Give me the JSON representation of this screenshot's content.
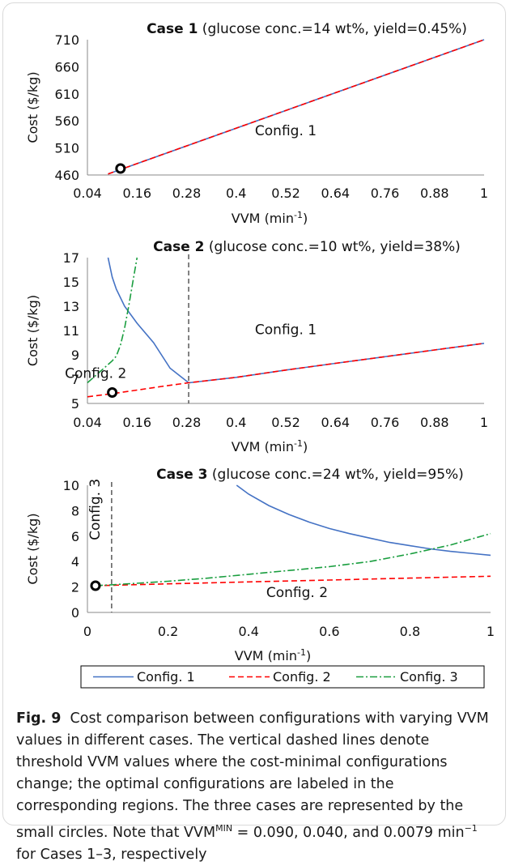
{
  "chart_data": [
    {
      "type": "line",
      "title_bold": "Case 1",
      "title_rest": " (glucose conc.=14 wt%, yield=0.45%)",
      "xlabel": "VVM (min",
      "xlabel_sup": "-1",
      "xlabel_end": ")",
      "ylabel": "Cost ($/kg)",
      "xlim": [
        0.04,
        1
      ],
      "ylim": [
        460,
        710
      ],
      "xticks": [
        "0.04",
        "0.16",
        "0.28",
        "0.4",
        "0.52",
        "0.64",
        "0.76",
        "0.88",
        "1"
      ],
      "yticks": [
        "460",
        "510",
        "560",
        "610",
        "660",
        "710"
      ],
      "series": [
        {
          "name": "Config. 1",
          "x": [
            0.09,
            1.0
          ],
          "y": [
            462,
            710
          ]
        },
        {
          "name": "Config. 2",
          "x": [
            0.09,
            1.0
          ],
          "y": [
            462,
            710
          ]
        }
      ],
      "threshold": null,
      "case_point": {
        "x": 0.12,
        "y": 472
      },
      "annotations": [
        {
          "text": "Config. 1",
          "x": 0.52,
          "y": 533,
          "vertical": false
        }
      ]
    },
    {
      "type": "line",
      "title_bold": "Case 2",
      "title_rest": " (glucose conc.=10 wt%, yield=38%)",
      "xlabel": "VVM (min",
      "xlabel_sup": "-1",
      "xlabel_end": ")",
      "ylabel": "Cost ($/kg)",
      "xlim": [
        0.04,
        1
      ],
      "ylim": [
        5,
        17
      ],
      "xticks": [
        "0.04",
        "0.16",
        "0.28",
        "0.4",
        "0.52",
        "0.64",
        "0.76",
        "0.88",
        "1"
      ],
      "yticks": [
        "5",
        "7",
        "9",
        "11",
        "13",
        "15",
        "17"
      ],
      "series": [
        {
          "name": "Config. 1",
          "x": [
            0.09,
            0.1,
            0.11,
            0.13,
            0.16,
            0.2,
            0.24,
            0.285,
            0.4,
            0.52,
            0.64,
            0.76,
            0.88,
            1.0
          ],
          "y": [
            17.0,
            15.4,
            14.4,
            13.0,
            11.6,
            10.0,
            7.9,
            6.7,
            7.15,
            7.75,
            8.3,
            8.85,
            9.4,
            9.95
          ]
        },
        {
          "name": "Config. 2",
          "x": [
            0.04,
            0.1,
            0.16,
            0.22,
            0.285,
            0.4,
            0.52,
            0.64,
            0.76,
            0.88,
            1.0
          ],
          "y": [
            5.55,
            5.8,
            6.1,
            6.4,
            6.7,
            7.15,
            7.75,
            8.3,
            8.85,
            9.4,
            9.95
          ]
        },
        {
          "name": "Config. 3",
          "x": [
            0.04,
            0.06,
            0.08,
            0.1,
            0.11,
            0.12,
            0.13,
            0.14,
            0.15,
            0.16
          ],
          "y": [
            6.7,
            7.3,
            7.9,
            8.5,
            8.9,
            9.8,
            11.2,
            13.0,
            15.0,
            17.0
          ]
        }
      ],
      "threshold": 0.285,
      "case_point": {
        "x": 0.1,
        "y": 5.9
      },
      "annotations": [
        {
          "text": "Config. 1",
          "x": 0.52,
          "y": 10.7,
          "vertical": false
        },
        {
          "text": "Config. 2",
          "x": 0.06,
          "y": 7.1,
          "vertical": false
        }
      ]
    },
    {
      "type": "line",
      "title_bold": "Case 3",
      "title_rest": " (glucose conc.=24 wt%, yield=95%)",
      "xlabel": "VVM (min",
      "xlabel_sup": "-1",
      "xlabel_end": ")",
      "ylabel": "Cost ($/kg)",
      "xlim": [
        0,
        1
      ],
      "ylim": [
        0,
        10
      ],
      "xticks": [
        "0",
        "0.2",
        "0.4",
        "0.6",
        "0.8",
        "1"
      ],
      "yticks": [
        "0",
        "2",
        "4",
        "6",
        "8",
        "10"
      ],
      "series": [
        {
          "name": "Config. 1",
          "x": [
            0.37,
            0.4,
            0.45,
            0.5,
            0.55,
            0.6,
            0.65,
            0.7,
            0.75,
            0.8,
            0.85,
            0.9,
            0.95,
            1.0
          ],
          "y": [
            10.0,
            9.3,
            8.4,
            7.7,
            7.1,
            6.6,
            6.2,
            5.85,
            5.5,
            5.25,
            5.0,
            4.8,
            4.65,
            4.5
          ]
        },
        {
          "name": "Config. 2",
          "x": [
            0.02,
            0.2,
            0.4,
            0.6,
            0.8,
            1.0
          ],
          "y": [
            2.1,
            2.25,
            2.4,
            2.55,
            2.7,
            2.85
          ]
        },
        {
          "name": "Config. 3",
          "x": [
            0.02,
            0.1,
            0.2,
            0.3,
            0.4,
            0.5,
            0.6,
            0.7,
            0.8,
            0.9,
            1.0
          ],
          "y": [
            2.1,
            2.25,
            2.45,
            2.7,
            3.0,
            3.3,
            3.6,
            4.0,
            4.6,
            5.3,
            6.2
          ]
        }
      ],
      "threshold": 0.06,
      "case_point": {
        "x": 0.02,
        "y": 2.1
      },
      "annotations": [
        {
          "text": "Config. 2",
          "x": 0.52,
          "y": 1.2,
          "vertical": false
        },
        {
          "text": "Config. 3",
          "x": 0.03,
          "y": 8.1,
          "vertical": true
        }
      ]
    }
  ],
  "legend": [
    {
      "name": "Config. 1",
      "color": "#4472c4",
      "dash": "solid"
    },
    {
      "name": "Config. 2",
      "color": "#ff0000",
      "dash": "dashed"
    },
    {
      "name": "Config. 3",
      "color": "#1a9e3f",
      "dash": "dash-dot"
    }
  ],
  "colors": {
    "config1": "#4472c4",
    "config2": "#ff0000",
    "config3": "#1a9e3f",
    "threshold": "#595959"
  },
  "caption": {
    "label": "Fig. 9",
    "text": "Cost comparison between configurations with varying VVM values in different cases. The vertical dashed lines denote threshold VVM values where the cost-minimal configurations change; the optimal configurations are labeled in the corresponding regions. The three cases are represented by the small circles. Note that VVM",
    "sup1": "MIN",
    "text2": " = 0.090, 0.040, and 0.0079 min",
    "sup2": "−1",
    "text3": " for Cases 1–3, respectively"
  }
}
